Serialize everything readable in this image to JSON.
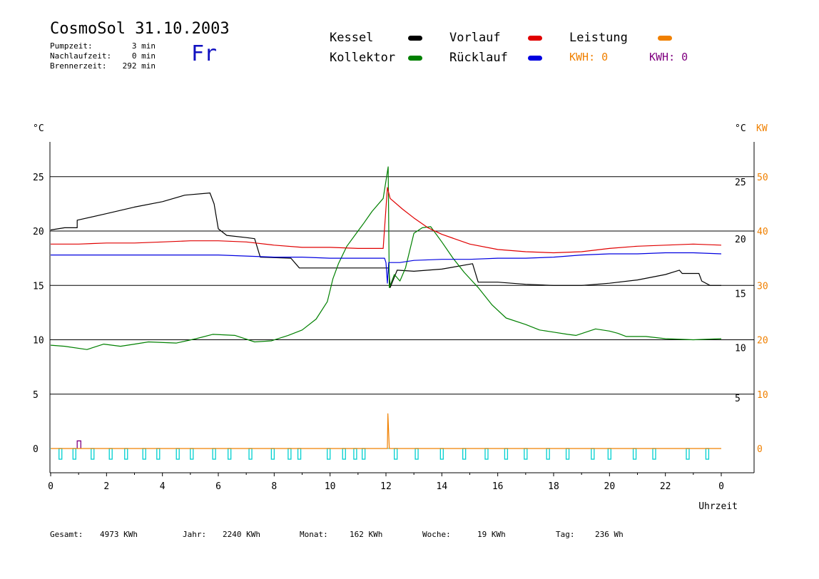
{
  "header": {
    "title": "CosmoSol 31.10.2003",
    "weekday": "Fr",
    "stats": [
      {
        "label": "Pumpzeit:",
        "value": "3 min"
      },
      {
        "label": "Nachlaufzeit:",
        "value": "0 min"
      },
      {
        "label": "Brennerzeit:",
        "value": "292 min"
      }
    ]
  },
  "legend": {
    "kessel": "Kessel",
    "kollektor": "Kollektor",
    "vorlauf": "Vorlauf",
    "ruecklauf": "Rücklauf",
    "leistung": "Leistung",
    "kwh_orange": "KWH: 0",
    "kwh_purple": "KWH: 0"
  },
  "colors": {
    "kessel": "#000000",
    "kollektor": "#008000",
    "vorlauf": "#e00000",
    "ruecklauf": "#0000e0",
    "leistung": "#f08000",
    "purple": "#800080",
    "pump": "#00d0d0",
    "weekday": "#1010c0"
  },
  "footer": [
    {
      "label": "Gesamt:",
      "value": "4973 KWh"
    },
    {
      "label": "Jahr:",
      "value": "2240 KWh"
    },
    {
      "label": "Monat:",
      "value": "162 KWh"
    },
    {
      "label": "Woche:",
      "value": "19 KWh"
    },
    {
      "label": "Tag:",
      "value": "236 Wh"
    }
  ],
  "chart_data": {
    "type": "line",
    "xlabel": "Uhrzeit",
    "ylabel_left": "°C",
    "ylabel_right": "°C",
    "ylabel_right2": "KW",
    "x_ticks": [
      "0",
      "2",
      "4",
      "6",
      "8",
      "10",
      "12",
      "14",
      "16",
      "18",
      "20",
      "22",
      "0"
    ],
    "y_left_ticks": [
      "0",
      "5",
      "10",
      "15",
      "20",
      "25"
    ],
    "y_right_ticks": [
      "5",
      "10",
      "15",
      "20",
      "25"
    ],
    "y_kw_ticks": [
      "0",
      "10",
      "20",
      "30",
      "40",
      "50"
    ],
    "xlim": [
      0,
      24
    ],
    "ylim": [
      -2,
      28
    ],
    "grid": "horizontal",
    "series": [
      {
        "name": "Kessel",
        "key": "kessel",
        "points": [
          [
            0,
            20.1
          ],
          [
            0.5,
            20.3
          ],
          [
            0.95,
            20.3
          ],
          [
            0.95,
            21.0
          ],
          [
            2,
            21.6
          ],
          [
            3,
            22.2
          ],
          [
            4,
            22.7
          ],
          [
            4.8,
            23.3
          ],
          [
            5.7,
            23.5
          ],
          [
            5.85,
            22.5
          ],
          [
            6.0,
            20.2
          ],
          [
            6.3,
            19.6
          ],
          [
            7.0,
            19.4
          ],
          [
            7.3,
            19.3
          ],
          [
            7.5,
            17.6
          ],
          [
            8.6,
            17.5
          ],
          [
            8.9,
            16.6
          ],
          [
            9.5,
            16.6
          ],
          [
            12.1,
            16.6
          ],
          [
            12.15,
            14.8
          ],
          [
            12.4,
            16.4
          ],
          [
            13,
            16.3
          ],
          [
            14,
            16.5
          ],
          [
            15.1,
            17.0
          ],
          [
            15.3,
            15.3
          ],
          [
            16,
            15.3
          ],
          [
            17,
            15.1
          ],
          [
            18,
            15.0
          ],
          [
            19,
            15.0
          ],
          [
            20,
            15.2
          ],
          [
            21,
            15.5
          ],
          [
            22,
            16.0
          ],
          [
            22.5,
            16.4
          ],
          [
            22.6,
            16.1
          ],
          [
            23.2,
            16.1
          ],
          [
            23.3,
            15.4
          ],
          [
            23.6,
            15.0
          ],
          [
            24,
            15.0
          ]
        ]
      },
      {
        "name": "Kollektor",
        "key": "kollektor",
        "points": [
          [
            0,
            9.5
          ],
          [
            0.5,
            9.4
          ],
          [
            1.3,
            9.1
          ],
          [
            1.9,
            9.6
          ],
          [
            2.5,
            9.4
          ],
          [
            3.0,
            9.6
          ],
          [
            3.5,
            9.8
          ],
          [
            4.5,
            9.7
          ],
          [
            5.2,
            10.1
          ],
          [
            5.8,
            10.5
          ],
          [
            6.6,
            10.4
          ],
          [
            7.3,
            9.8
          ],
          [
            7.9,
            9.9
          ],
          [
            8.5,
            10.4
          ],
          [
            9.0,
            10.9
          ],
          [
            9.5,
            11.9
          ],
          [
            9.9,
            13.5
          ],
          [
            10.1,
            15.6
          ],
          [
            10.3,
            17.0
          ],
          [
            10.6,
            18.6
          ],
          [
            11.0,
            20.0
          ],
          [
            11.2,
            20.7
          ],
          [
            11.5,
            21.8
          ],
          [
            11.9,
            23.0
          ],
          [
            12.08,
            25.9
          ],
          [
            12.12,
            14.8
          ],
          [
            12.3,
            16.0
          ],
          [
            12.5,
            15.4
          ],
          [
            12.7,
            16.6
          ],
          [
            13.0,
            19.8
          ],
          [
            13.3,
            20.3
          ],
          [
            13.6,
            20.4
          ],
          [
            14.0,
            19.0
          ],
          [
            14.4,
            17.5
          ],
          [
            14.8,
            16.2
          ],
          [
            15.3,
            14.8
          ],
          [
            15.8,
            13.2
          ],
          [
            16.3,
            12.0
          ],
          [
            17.0,
            11.4
          ],
          [
            17.5,
            10.9
          ],
          [
            18.0,
            10.7
          ],
          [
            18.5,
            10.5
          ],
          [
            18.8,
            10.4
          ],
          [
            19.5,
            11.0
          ],
          [
            20.0,
            10.8
          ],
          [
            20.3,
            10.6
          ],
          [
            20.6,
            10.3
          ],
          [
            21.3,
            10.3
          ],
          [
            22,
            10.1
          ],
          [
            23,
            10.0
          ],
          [
            24,
            10.1
          ]
        ]
      },
      {
        "name": "Vorlauf",
        "key": "vorlauf",
        "points": [
          [
            0,
            18.8
          ],
          [
            1,
            18.8
          ],
          [
            2,
            18.9
          ],
          [
            3,
            18.9
          ],
          [
            4,
            19.0
          ],
          [
            5,
            19.1
          ],
          [
            6,
            19.1
          ],
          [
            7,
            19.0
          ],
          [
            8,
            18.7
          ],
          [
            9,
            18.5
          ],
          [
            10,
            18.5
          ],
          [
            11,
            18.4
          ],
          [
            11.9,
            18.4
          ],
          [
            12.05,
            24.0
          ],
          [
            12.15,
            23.0
          ],
          [
            12.6,
            22.0
          ],
          [
            13,
            21.2
          ],
          [
            13.5,
            20.3
          ],
          [
            14,
            19.7
          ],
          [
            15,
            18.8
          ],
          [
            16,
            18.3
          ],
          [
            17,
            18.1
          ],
          [
            18,
            18.0
          ],
          [
            19,
            18.1
          ],
          [
            20,
            18.4
          ],
          [
            21,
            18.6
          ],
          [
            22,
            18.7
          ],
          [
            23,
            18.8
          ],
          [
            24,
            18.7
          ]
        ]
      },
      {
        "name": "Rücklauf",
        "key": "ruecklauf",
        "points": [
          [
            0,
            17.8
          ],
          [
            1,
            17.8
          ],
          [
            2,
            17.8
          ],
          [
            3,
            17.8
          ],
          [
            4,
            17.8
          ],
          [
            5,
            17.8
          ],
          [
            6,
            17.8
          ],
          [
            7,
            17.7
          ],
          [
            8,
            17.6
          ],
          [
            9,
            17.6
          ],
          [
            10,
            17.5
          ],
          [
            11,
            17.5
          ],
          [
            11.95,
            17.5
          ],
          [
            12.0,
            17.1
          ],
          [
            12.05,
            15.2
          ],
          [
            12.1,
            17.1
          ],
          [
            12.5,
            17.1
          ],
          [
            13,
            17.3
          ],
          [
            14,
            17.4
          ],
          [
            15,
            17.4
          ],
          [
            16,
            17.5
          ],
          [
            17,
            17.5
          ],
          [
            18,
            17.6
          ],
          [
            19,
            17.8
          ],
          [
            20,
            17.9
          ],
          [
            21,
            17.9
          ],
          [
            22,
            18.0
          ],
          [
            23,
            18.0
          ],
          [
            24,
            17.9
          ]
        ]
      },
      {
        "name": "Leistung",
        "key": "leistung",
        "points": [
          [
            0,
            0
          ],
          [
            12.05,
            0
          ],
          [
            12.07,
            3.2
          ],
          [
            12.12,
            0
          ],
          [
            24,
            0
          ]
        ]
      }
    ],
    "purple_bump": {
      "x": [
        0.95,
        1.08
      ],
      "y": 0.7
    },
    "pump_on_hours": [
      0.35,
      0.85,
      1.5,
      2.15,
      2.7,
      3.35,
      3.85,
      4.55,
      5.05,
      5.85,
      6.4,
      7.15,
      7.95,
      8.55,
      8.9,
      9.95,
      10.5,
      10.9,
      11.2,
      12.35,
      13.1,
      14.0,
      14.8,
      15.6,
      16.3,
      17.0,
      17.8,
      18.5,
      19.4,
      20.0,
      20.9,
      21.6,
      22.8,
      23.5
    ],
    "pump_off_gaps": [
      [
        0.2,
        0.5
      ],
      [
        6.0,
        6.9
      ],
      [
        11.35,
        12.4
      ]
    ]
  }
}
